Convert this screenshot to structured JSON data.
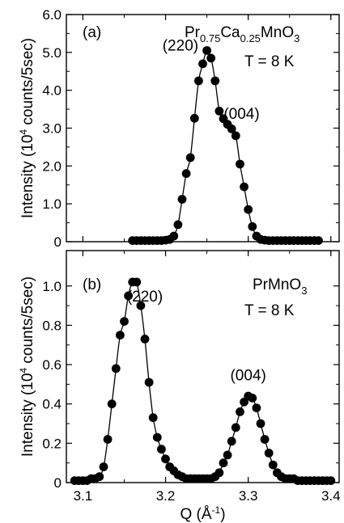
{
  "chart_data": [
    {
      "type": "scatter",
      "panel_label": "(a)",
      "compound": {
        "base": "Pr",
        "s1": "0.75",
        "mid": "Ca",
        "s2": "0.25",
        "end": "MnO",
        "s3": "3"
      },
      "temperature": "T = 8 K",
      "ylabel": {
        "pre": "Intensity (10",
        "sup": "4",
        "post": " counts/5sec)"
      },
      "xlabel": {
        "pre": "Q (Å",
        "sup": "-1",
        "post": ")"
      },
      "xlim": [
        3.08,
        3.41
      ],
      "ylim": [
        0,
        6.0
      ],
      "yticks": [
        "0",
        "1.0",
        "2.0",
        "3.0",
        "4.0",
        "5.0",
        "6.0"
      ],
      "ytick_values": [
        0,
        1,
        2,
        3,
        4,
        5,
        6
      ],
      "xticks": [
        3.1,
        3.2,
        3.3,
        3.4
      ],
      "grid": false,
      "annotations": [
        {
          "text": "(220)",
          "x": 3.218,
          "y": 5.05
        },
        {
          "text": "(004)",
          "x": 3.292,
          "y": 3.25
        }
      ],
      "series": [
        {
          "style": "markers with fit line",
          "x": [
            3.16,
            3.165,
            3.17,
            3.175,
            3.18,
            3.185,
            3.19,
            3.195,
            3.2,
            3.205,
            3.21,
            3.215,
            3.22,
            3.225,
            3.23,
            3.235,
            3.24,
            3.245,
            3.25,
            3.255,
            3.26,
            3.265,
            3.27,
            3.275,
            3.28,
            3.285,
            3.29,
            3.295,
            3.3,
            3.305,
            3.31,
            3.315,
            3.32,
            3.325,
            3.33,
            3.335,
            3.34,
            3.345,
            3.35,
            3.355,
            3.36,
            3.365,
            3.37,
            3.375,
            3.38,
            3.385
          ],
          "values": [
            0.03,
            0.03,
            0.03,
            0.03,
            0.03,
            0.03,
            0.03,
            0.03,
            0.04,
            0.06,
            0.15,
            0.45,
            1.12,
            1.8,
            2.22,
            3.26,
            4.25,
            4.7,
            5.05,
            4.85,
            4.25,
            3.45,
            3.25,
            3.1,
            2.98,
            2.8,
            2.05,
            1.45,
            0.85,
            0.4,
            0.15,
            0.06,
            0.04,
            0.03,
            0.03,
            0.03,
            0.03,
            0.03,
            0.03,
            0.03,
            0.03,
            0.03,
            0.03,
            0.03,
            0.03,
            0.03
          ]
        }
      ]
    },
    {
      "type": "scatter",
      "panel_label": "(b)",
      "compound": {
        "base": "PrMnO",
        "s1": "3"
      },
      "temperature": "T = 8 K",
      "ylabel": {
        "pre": "Intensity (10",
        "sup": "4",
        "post": " counts/5sec)"
      },
      "xlabel": {
        "pre": "Q (Å",
        "sup": "-1",
        "post": ")"
      },
      "xlim": [
        3.08,
        3.41
      ],
      "ylim": [
        0,
        1.18
      ],
      "yticks": [
        "0",
        "0.2",
        "0.4",
        "0.6",
        "0.8",
        "1.0"
      ],
      "ytick_values": [
        0,
        0.2,
        0.4,
        0.6,
        0.8,
        1.0
      ],
      "xticks": [
        3.1,
        3.2,
        3.3,
        3.4
      ],
      "grid": false,
      "annotations": [
        {
          "text": "(220)",
          "x": 3.175,
          "y": 0.92
        },
        {
          "text": "(004)",
          "x": 3.3,
          "y": 0.52
        }
      ],
      "series": [
        {
          "style": "markers with fit line",
          "x": [
            3.09,
            3.095,
            3.1,
            3.105,
            3.11,
            3.115,
            3.12,
            3.125,
            3.13,
            3.135,
            3.14,
            3.145,
            3.15,
            3.155,
            3.16,
            3.165,
            3.17,
            3.175,
            3.18,
            3.185,
            3.19,
            3.195,
            3.2,
            3.205,
            3.21,
            3.215,
            3.22,
            3.225,
            3.23,
            3.235,
            3.24,
            3.245,
            3.25,
            3.255,
            3.26,
            3.265,
            3.27,
            3.275,
            3.28,
            3.285,
            3.29,
            3.295,
            3.3,
            3.305,
            3.31,
            3.315,
            3.32,
            3.325,
            3.33,
            3.335,
            3.34,
            3.345,
            3.35,
            3.355,
            3.36,
            3.365,
            3.37,
            3.375,
            3.38,
            3.385,
            3.39,
            3.395,
            3.4
          ],
          "values": [
            0.01,
            0.01,
            0.01,
            0.01,
            0.02,
            0.02,
            0.03,
            0.08,
            0.22,
            0.4,
            0.58,
            0.75,
            0.82,
            0.95,
            1.02,
            1.02,
            0.9,
            0.73,
            0.51,
            0.33,
            0.23,
            0.17,
            0.12,
            0.08,
            0.06,
            0.04,
            0.03,
            0.02,
            0.02,
            0.02,
            0.02,
            0.02,
            0.02,
            0.02,
            0.03,
            0.05,
            0.1,
            0.14,
            0.21,
            0.28,
            0.36,
            0.41,
            0.44,
            0.43,
            0.38,
            0.3,
            0.22,
            0.15,
            0.09,
            0.05,
            0.03,
            0.02,
            0.02,
            0.02,
            0.01,
            0.01,
            0.01,
            0.01,
            0.01,
            0.01,
            0.01,
            0.01,
            0.01
          ]
        }
      ]
    }
  ]
}
